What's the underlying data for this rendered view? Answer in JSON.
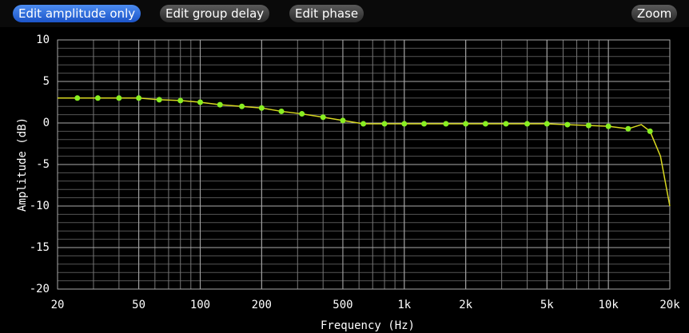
{
  "toolbar": {
    "buttons": [
      "Edit amplitude only",
      "Edit group delay",
      "Edit phase",
      "Zoom"
    ],
    "active": 0
  },
  "chart_data": {
    "type": "line",
    "xlabel": "Frequency (Hz)",
    "ylabel": "Amplitude (dB)",
    "xscale": "log",
    "grid": true,
    "xlim": [
      20,
      20000
    ],
    "ylim": [
      -20,
      10
    ],
    "xticks": [
      20,
      50,
      100,
      200,
      500,
      {
        "value": 1000,
        "label": "1k"
      },
      {
        "value": 2000,
        "label": "2k"
      },
      {
        "value": 5000,
        "label": "5k"
      },
      {
        "value": 10000,
        "label": "10k"
      },
      {
        "value": 20000,
        "label": "20k"
      }
    ],
    "yticks": [
      -20,
      -15,
      -10,
      -5,
      0,
      5,
      10
    ],
    "series": [
      {
        "color": "#d8d820",
        "markers": false,
        "x": [
          20,
          25,
          31.5,
          40,
          50,
          63,
          80,
          100,
          125,
          160,
          200,
          250,
          315,
          400,
          500,
          630,
          800,
          1000,
          1250,
          1600,
          2000,
          2500,
          3150,
          4000,
          5000,
          6300,
          8000,
          10000,
          12500,
          14500,
          16000,
          18000,
          20000
        ],
        "values": [
          3.0,
          3.0,
          3.0,
          3.0,
          3.0,
          2.8,
          2.7,
          2.5,
          2.2,
          2.0,
          1.8,
          1.4,
          1.1,
          0.7,
          0.3,
          -0.1,
          -0.1,
          -0.1,
          -0.1,
          -0.1,
          -0.1,
          -0.1,
          -0.1,
          -0.1,
          -0.1,
          -0.2,
          -0.3,
          -0.4,
          -0.7,
          -0.2,
          -1.0,
          -4.0,
          -10.0
        ]
      },
      {
        "color": "#88ee22",
        "markers": true,
        "x": [
          25,
          31.5,
          40,
          50,
          63,
          80,
          100,
          125,
          160,
          200,
          250,
          315,
          400,
          500,
          630,
          800,
          1000,
          1250,
          1600,
          2000,
          2500,
          3150,
          4000,
          5000,
          6300,
          8000,
          10000,
          12500,
          16000
        ],
        "values": [
          3.0,
          3.0,
          3.0,
          3.0,
          2.8,
          2.7,
          2.5,
          2.2,
          2.0,
          1.8,
          1.4,
          1.1,
          0.7,
          0.3,
          -0.1,
          -0.1,
          -0.1,
          -0.1,
          -0.1,
          -0.1,
          -0.1,
          -0.1,
          -0.1,
          -0.1,
          -0.2,
          -0.3,
          -0.4,
          -0.7,
          -1.0
        ]
      }
    ]
  }
}
